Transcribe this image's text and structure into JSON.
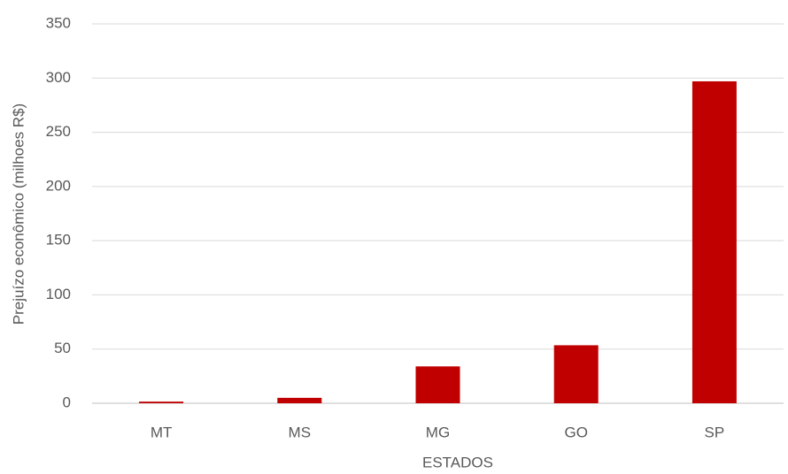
{
  "chart_data": {
    "type": "bar",
    "categories": [
      "MT",
      "MS",
      "MG",
      "GO",
      "SP"
    ],
    "values": [
      1.5,
      5,
      34,
      53.5,
      297
    ],
    "color": "#c00000",
    "ylim": [
      0,
      350
    ],
    "yticks": [
      0,
      50,
      100,
      150,
      200,
      250,
      300,
      350
    ],
    "grid": true,
    "x_label": "ESTADOS",
    "y_label": "Prejuízo econômico (milhoes R$)"
  }
}
